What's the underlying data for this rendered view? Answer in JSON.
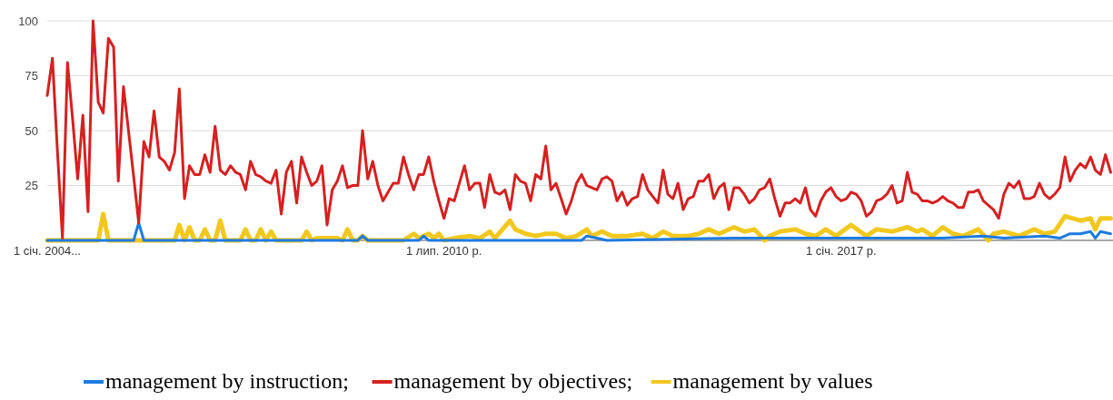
{
  "chart_data": {
    "type": "line",
    "xlim": [
      "2004-01",
      "2021-06-15"
    ],
    "ylim": [
      0,
      100
    ],
    "xticks": [
      {
        "value": "2004-01",
        "label": "1 січ. 2004..."
      },
      {
        "value": "2010-07",
        "label": "1 лип. 2010 р."
      },
      {
        "value": "2017-01",
        "label": "1 січ. 2017 р."
      }
    ],
    "yticks": [
      25,
      50,
      75,
      100
    ],
    "grid": "y",
    "legend": "bottom",
    "marker": "none",
    "line_style": "solid",
    "x": [
      "2004-01",
      "2004-02",
      "2004-03",
      "2004-04",
      "2004-05",
      "2004-06",
      "2004-07",
      "2004-08",
      "2004-09",
      "2004-10",
      "2004-11",
      "2004-12",
      "2005-01",
      "2005-02",
      "2005-03",
      "2005-04",
      "2005-05",
      "2005-06",
      "2005-07",
      "2005-08",
      "2005-09",
      "2005-10",
      "2005-11",
      "2005-12",
      "2006-01",
      "2006-02",
      "2006-03",
      "2006-04",
      "2006-05",
      "2006-06",
      "2006-07",
      "2006-08",
      "2006-09",
      "2006-10",
      "2006-11",
      "2006-12",
      "2007-01",
      "2007-02",
      "2007-03",
      "2007-04",
      "2007-05",
      "2007-06",
      "2007-07",
      "2007-08",
      "2007-09",
      "2007-10",
      "2007-11",
      "2007-12",
      "2008-01",
      "2008-02",
      "2008-03",
      "2008-04",
      "2008-05",
      "2008-06",
      "2008-07",
      "2008-08",
      "2008-09",
      "2008-10",
      "2008-11",
      "2008-12",
      "2009-01",
      "2009-02",
      "2009-03",
      "2009-04",
      "2009-05",
      "2009-06",
      "2009-07",
      "2009-08",
      "2009-09",
      "2009-10",
      "2009-11",
      "2009-12",
      "2010-01",
      "2010-02",
      "2010-03",
      "2010-04",
      "2010-05",
      "2010-06",
      "2010-07",
      "2010-08",
      "2010-09",
      "2010-10",
      "2010-11",
      "2010-12",
      "2011-01",
      "2011-02",
      "2011-03",
      "2011-04",
      "2011-05",
      "2011-06",
      "2011-07",
      "2011-08",
      "2011-09",
      "2011-10",
      "2011-11",
      "2011-12",
      "2012-01",
      "2012-02",
      "2012-03",
      "2012-04",
      "2012-05",
      "2012-06",
      "2012-07",
      "2012-08",
      "2012-09",
      "2012-10",
      "2012-11",
      "2012-12",
      "2013-01",
      "2013-02",
      "2013-03",
      "2013-04",
      "2013-05",
      "2013-06",
      "2013-07",
      "2013-08",
      "2013-09",
      "2013-10",
      "2013-11",
      "2013-12",
      "2014-01",
      "2014-02",
      "2014-03",
      "2014-04",
      "2014-05",
      "2014-06",
      "2014-07",
      "2014-08",
      "2014-09",
      "2014-10",
      "2014-11",
      "2014-12",
      "2015-01",
      "2015-02",
      "2015-03",
      "2015-04",
      "2015-05",
      "2015-06",
      "2015-07",
      "2015-08",
      "2015-09",
      "2015-10",
      "2015-11",
      "2015-12",
      "2016-01",
      "2016-02",
      "2016-03",
      "2016-04",
      "2016-05",
      "2016-06",
      "2016-07",
      "2016-08",
      "2016-09",
      "2016-10",
      "2016-11",
      "2016-12",
      "2017-01",
      "2017-02",
      "2017-03",
      "2017-04",
      "2017-05",
      "2017-06",
      "2017-07",
      "2017-08",
      "2017-09",
      "2017-10",
      "2017-11",
      "2017-12",
      "2018-01",
      "2018-02",
      "2018-03",
      "2018-04",
      "2018-05",
      "2018-06",
      "2018-07",
      "2018-08",
      "2018-09",
      "2018-10",
      "2018-11",
      "2018-12",
      "2019-01",
      "2019-02",
      "2019-03",
      "2019-04",
      "2019-05",
      "2019-06",
      "2019-07",
      "2019-08",
      "2019-09",
      "2019-10",
      "2019-11",
      "2019-12",
      "2020-01",
      "2020-02",
      "2020-03",
      "2020-04",
      "2020-05",
      "2020-06",
      "2020-07",
      "2020-08",
      "2020-09",
      "2020-10",
      "2020-11",
      "2020-12",
      "2021-01",
      "2021-02",
      "2021-03",
      "2021-04",
      "2021-05",
      "2021-06"
    ],
    "series": [
      {
        "name": "management by values",
        "color": "#f2c81e",
        "x": [
          "2004-01",
          "2004-11",
          "2004-12",
          "2005-01",
          "2006-02",
          "2006-03",
          "2006-04",
          "2006-05",
          "2006-06",
          "2006-07",
          "2006-08",
          "2006-09",
          "2006-10",
          "2006-11",
          "2006-12",
          "2007-03",
          "2007-04",
          "2007-05",
          "2007-06",
          "2007-07",
          "2007-08",
          "2007-09",
          "2007-10",
          "2008-03",
          "2008-04",
          "2008-05",
          "2008-06",
          "2008-10",
          "2008-11",
          "2008-12",
          "2009-01",
          "2009-02",
          "2009-03",
          "2009-04",
          "2009-11",
          "2010-01",
          "2010-02",
          "2010-04",
          "2010-05",
          "2010-06",
          "2010-07",
          "2010-09",
          "2010-12",
          "2011-02",
          "2011-04",
          "2011-05",
          "2011-08",
          "2011-09",
          "2011-11",
          "2012-01",
          "2012-03",
          "2012-05",
          "2012-07",
          "2012-09",
          "2012-11",
          "2012-12",
          "2013-02",
          "2013-04",
          "2013-07",
          "2013-10",
          "2013-12",
          "2014-02",
          "2014-04",
          "2014-07",
          "2014-09",
          "2014-11",
          "2015-01",
          "2015-04",
          "2015-06",
          "2015-08",
          "2015-10",
          "2015-11",
          "2016-01",
          "2016-04",
          "2016-06",
          "2016-08",
          "2016-10",
          "2016-12",
          "2017-03",
          "2017-06",
          "2017-08",
          "2017-11",
          "2018-02",
          "2018-04",
          "2018-05",
          "2018-07",
          "2018-09",
          "2018-11",
          "2019-01",
          "2019-04",
          "2019-06",
          "2019-07",
          "2019-09",
          "2019-12",
          "2020-03",
          "2020-05",
          "2020-07",
          "2020-09",
          "2020-12",
          "2021-02",
          "2021-03",
          "2021-04",
          "2021-06"
        ],
        "values": [
          0,
          0,
          12,
          0,
          0,
          7,
          0,
          6,
          0,
          0,
          5,
          0,
          0,
          9,
          0,
          0,
          5,
          0,
          0,
          5,
          0,
          4,
          0,
          0,
          4,
          0,
          1,
          1,
          0,
          5,
          0,
          0,
          2,
          0,
          0,
          3,
          1,
          3,
          1,
          3,
          0,
          1,
          2,
          1,
          4,
          1,
          9,
          5,
          3,
          2,
          3,
          3,
          1,
          2,
          5,
          2,
          4,
          2,
          2,
          3,
          1,
          4,
          2,
          2,
          3,
          5,
          3,
          6,
          4,
          5,
          0,
          2,
          4,
          5,
          3,
          2,
          5,
          2,
          7,
          2,
          5,
          4,
          6,
          4,
          5,
          2,
          6,
          3,
          2,
          5,
          0,
          3,
          4,
          2,
          5,
          3,
          4,
          11,
          9,
          10,
          5,
          10,
          10
        ]
      },
      {
        "name": "management by instruction;",
        "color": "#1e7be0",
        "x": [
          "2004-01",
          "2005-06",
          "2005-07",
          "2005-08",
          "2009-02",
          "2009-03",
          "2009-04",
          "2010-02",
          "2010-03",
          "2010-04",
          "2012-10",
          "2012-11",
          "2013-01",
          "2013-03",
          "2015-04",
          "2015-09",
          "2016-07",
          "2017-05",
          "2018-03",
          "2018-09",
          "2019-05",
          "2019-09",
          "2020-05",
          "2020-08",
          "2020-10",
          "2020-12",
          "2021-02",
          "2021-03",
          "2021-04",
          "2021-06"
        ],
        "values": [
          0,
          0,
          8,
          0,
          0,
          2,
          0,
          0,
          2,
          0,
          0,
          2,
          1,
          0,
          1,
          1,
          1,
          1,
          1,
          1,
          2,
          1,
          2,
          1,
          3,
          3,
          4,
          1,
          4,
          3
        ]
      },
      {
        "name": "management by objectives;",
        "color": "#d62020",
        "values": [
          66,
          83,
          42,
          1,
          81,
          55,
          28,
          57,
          13,
          100,
          63,
          58,
          92,
          88,
          27,
          70,
          50,
          29,
          8,
          45,
          38,
          59,
          38,
          36,
          32,
          40,
          69,
          19,
          34,
          30,
          30,
          39,
          31,
          52,
          32,
          30,
          34,
          31,
          30,
          23,
          36,
          30,
          29,
          27,
          26,
          32,
          12,
          31,
          36,
          17,
          38,
          31,
          25,
          27,
          34,
          7,
          23,
          27,
          34,
          24,
          25,
          25,
          50,
          28,
          36,
          25,
          18,
          22,
          26,
          26,
          38,
          30,
          23,
          30,
          30,
          38,
          27,
          18,
          10,
          19,
          18,
          26,
          34,
          23,
          26,
          26,
          15,
          30,
          22,
          21,
          23,
          14,
          30,
          27,
          26,
          18,
          30,
          28,
          43,
          23,
          26,
          19,
          12,
          18,
          26,
          30,
          25,
          24,
          23,
          28,
          29,
          27,
          18,
          22,
          16,
          19,
          20,
          30,
          23,
          20,
          17,
          32,
          21,
          19,
          26,
          14,
          19,
          20,
          27,
          27,
          30,
          19,
          24,
          26,
          14,
          24,
          24,
          21,
          17,
          19,
          23,
          24,
          28,
          19,
          11,
          17,
          17,
          19,
          17,
          24,
          14,
          11,
          18,
          22,
          24,
          20,
          18,
          19,
          22,
          21,
          18,
          11,
          13,
          18,
          19,
          21,
          25,
          17,
          18,
          31,
          22,
          21,
          18,
          18,
          17,
          18,
          20,
          18,
          17,
          15,
          15,
          22,
          22,
          23,
          18,
          16,
          14,
          10,
          21,
          26,
          24,
          27,
          19,
          19,
          20,
          26,
          21,
          19,
          21,
          24,
          38,
          27,
          32,
          35,
          33,
          38,
          32,
          30,
          39,
          31
        ]
      }
    ]
  }
}
